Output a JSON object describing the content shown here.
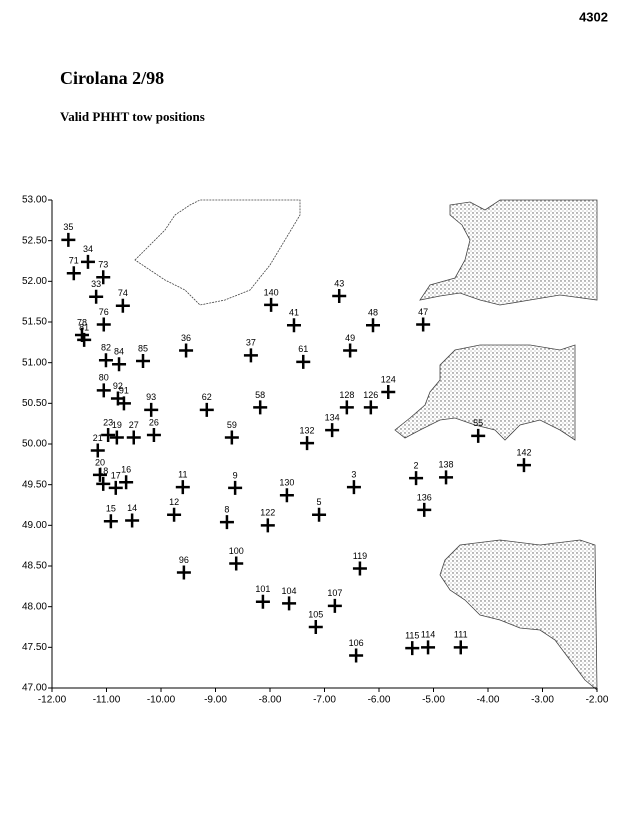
{
  "page_number": "4302",
  "chart_data": {
    "type": "scatter",
    "title": "Cirolana 2/98",
    "subtitle": "Valid PHHT tow positions",
    "xlim": [
      -12,
      -2
    ],
    "xticks": [
      {
        "value": -12,
        "label": "-12.00"
      },
      {
        "value": -11,
        "label": "-11.00"
      },
      {
        "value": -10,
        "label": "-10.00"
      },
      {
        "value": -9,
        "label": "-9.00"
      },
      {
        "value": -8,
        "label": "-8.00"
      },
      {
        "value": -7,
        "label": "-7.00"
      },
      {
        "value": -6,
        "label": "-6.00"
      },
      {
        "value": -5,
        "label": "-5.00"
      },
      {
        "value": -4,
        "label": "-4.00"
      },
      {
        "value": -3,
        "label": "-3.00"
      },
      {
        "value": -2,
        "label": "-2.00"
      }
    ],
    "ylim": [
      47,
      53
    ],
    "yticks": [
      {
        "value": 53,
        "label": "53.00"
      },
      {
        "value": 52.5,
        "label": "52.50"
      },
      {
        "value": 52,
        "label": "52.00"
      },
      {
        "value": 51.5,
        "label": "51.50"
      },
      {
        "value": 51,
        "label": "51.00"
      },
      {
        "value": 50.5,
        "label": "50.50"
      },
      {
        "value": 50,
        "label": "50.00"
      },
      {
        "value": 49.5,
        "label": "49.50"
      },
      {
        "value": 49,
        "label": "49.00"
      },
      {
        "value": 48.5,
        "label": "48.50"
      },
      {
        "value": 48,
        "label": "48.00"
      },
      {
        "value": 47.5,
        "label": "47.50"
      },
      {
        "value": 47,
        "label": "47.00"
      }
    ],
    "color": "#000000",
    "labels": [
      "35",
      "34",
      "71",
      "73",
      "33",
      "76",
      "74",
      "78",
      "81",
      "82",
      "84",
      "85",
      "36",
      "37",
      "140",
      "41",
      "43",
      "48",
      "47",
      "49",
      "61",
      "80",
      "92",
      "91",
      "93",
      "62",
      "58",
      "128",
      "126",
      "124",
      "134",
      "132",
      "59",
      "23",
      "19",
      "27",
      "26",
      "21",
      "20",
      "18",
      "17",
      "16",
      "11",
      "9",
      "130",
      "3",
      "2",
      "138",
      "142",
      "136",
      "5",
      "122",
      "8",
      "12",
      "15",
      "14",
      "96",
      "100",
      "119",
      "101",
      "104",
      "107",
      "105",
      "106",
      "115",
      "114",
      "111",
      "55"
    ],
    "x": [
      -11.7,
      -11.34,
      -11.6,
      -11.06,
      -11.19,
      -11.05,
      -10.7,
      -11.45,
      -11.41,
      -11.01,
      -10.77,
      -10.33,
      -9.54,
      -8.35,
      -7.98,
      -7.56,
      -6.73,
      -6.11,
      -5.19,
      -6.53,
      -7.39,
      -11.05,
      -10.79,
      -10.68,
      -10.18,
      -9.16,
      -8.18,
      -6.59,
      -6.15,
      -5.83,
      -6.86,
      -7.32,
      -8.7,
      -10.97,
      -10.81,
      -10.5,
      -10.13,
      -11.16,
      -11.12,
      -11.06,
      -10.83,
      -10.64,
      -9.6,
      -8.64,
      -7.69,
      -6.46,
      -5.32,
      -4.77,
      -3.34,
      -5.17,
      -7.1,
      -8.04,
      -8.79,
      -9.76,
      -10.92,
      -10.53,
      -9.58,
      -8.62,
      -6.35,
      -8.13,
      -7.65,
      -6.81,
      -7.16,
      -6.42,
      -5.39,
      -5.1,
      -4.5,
      -4.18
    ],
    "values": [
      52.51,
      52.24,
      52.1,
      52.05,
      51.81,
      51.47,
      51.7,
      51.34,
      51.28,
      51.03,
      50.98,
      51.02,
      51.15,
      51.09,
      51.71,
      51.46,
      51.82,
      51.46,
      51.47,
      51.15,
      51.01,
      50.66,
      50.56,
      50.5,
      50.42,
      50.42,
      50.45,
      50.45,
      50.45,
      50.64,
      50.17,
      50.01,
      50.08,
      50.11,
      50.08,
      50.08,
      50.11,
      49.92,
      49.62,
      49.51,
      49.46,
      49.53,
      49.47,
      49.46,
      49.37,
      49.47,
      49.58,
      49.59,
      49.74,
      49.19,
      49.13,
      49.0,
      49.04,
      49.13,
      49.05,
      49.06,
      48.42,
      48.53,
      48.47,
      48.06,
      48.04,
      48.01,
      47.75,
      47.4,
      47.49,
      47.5,
      47.5,
      50.1
    ]
  }
}
